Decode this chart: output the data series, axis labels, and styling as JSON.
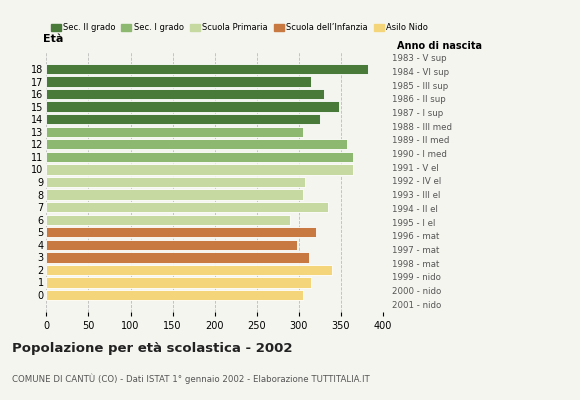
{
  "ages": [
    0,
    1,
    2,
    3,
    4,
    5,
    6,
    7,
    8,
    9,
    10,
    11,
    12,
    13,
    14,
    15,
    16,
    17,
    18
  ],
  "values": [
    305,
    315,
    340,
    312,
    298,
    320,
    290,
    335,
    305,
    308,
    365,
    365,
    358,
    305,
    325,
    348,
    330,
    315,
    382
  ],
  "right_labels": [
    "2001 - nido",
    "2000 - nido",
    "1999 - nido",
    "1998 - mat",
    "1997 - mat",
    "1996 - mat",
    "1995 - I el",
    "1994 - II el",
    "1993 - III el",
    "1992 - IV el",
    "1991 - V el",
    "1990 - I med",
    "1989 - II med",
    "1988 - III med",
    "1987 - I sup",
    "1986 - II sup",
    "1985 - III sup",
    "1984 - VI sup",
    "1983 - V sup"
  ],
  "colors": [
    "#f5d57a",
    "#f5d57a",
    "#f5d57a",
    "#c87941",
    "#c87941",
    "#c87941",
    "#c5d9a0",
    "#c5d9a0",
    "#c5d9a0",
    "#c5d9a0",
    "#c5d9a0",
    "#8db870",
    "#8db870",
    "#8db870",
    "#4a7a3a",
    "#4a7a3a",
    "#4a7a3a",
    "#4a7a3a",
    "#4a7a3a"
  ],
  "legend_labels": [
    "Sec. II grado",
    "Sec. I grado",
    "Scuola Primaria",
    "Scuola dell’Infanzia",
    "Asilo Nido"
  ],
  "legend_colors": [
    "#4a7a3a",
    "#8db870",
    "#c5d9a0",
    "#c87941",
    "#f5d57a"
  ],
  "title": "Popolazione per età scolastica - 2002",
  "subtitle": "COMUNE DI CANTÙ (CO) - Dati ISTAT 1° gennaio 2002 - Elaborazione TUTTITALIA.IT",
  "xlabel_age": "Età",
  "xlabel_year": "Anno di nascita",
  "xlim": [
    0,
    400
  ],
  "xticks": [
    0,
    50,
    100,
    150,
    200,
    250,
    300,
    350,
    400
  ],
  "bar_height": 0.82,
  "bg_color": "#f5f5f0",
  "grid_color": "#bbbbbb"
}
